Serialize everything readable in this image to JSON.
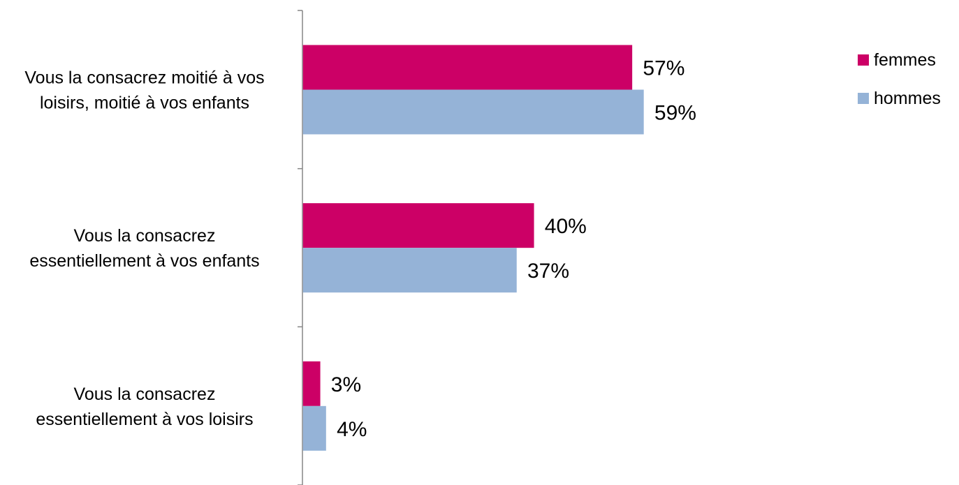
{
  "chart_data": {
    "type": "bar",
    "orientation": "horizontal",
    "categories": [
      [
        "Vous la consacrez moitié à vos",
        "loisirs, moitié à vos enfants"
      ],
      [
        "Vous la consacrez",
        "essentiellement à vos enfants"
      ],
      [
        "Vous la consacrez",
        "essentiellement à vos loisirs"
      ]
    ],
    "series": [
      {
        "name": "femmes",
        "values": [
          57,
          40,
          3
        ],
        "labels": [
          "57%",
          "40%",
          "3%"
        ],
        "color": "#CC0066"
      },
      {
        "name": "hommes",
        "values": [
          59,
          37,
          4
        ],
        "labels": [
          "59%",
          "37%",
          "4%"
        ],
        "color": "#95B3D7"
      }
    ],
    "xlim": [
      0,
      100
    ],
    "grid": false,
    "legend_position": "top-right",
    "axis_color": "#868686"
  }
}
